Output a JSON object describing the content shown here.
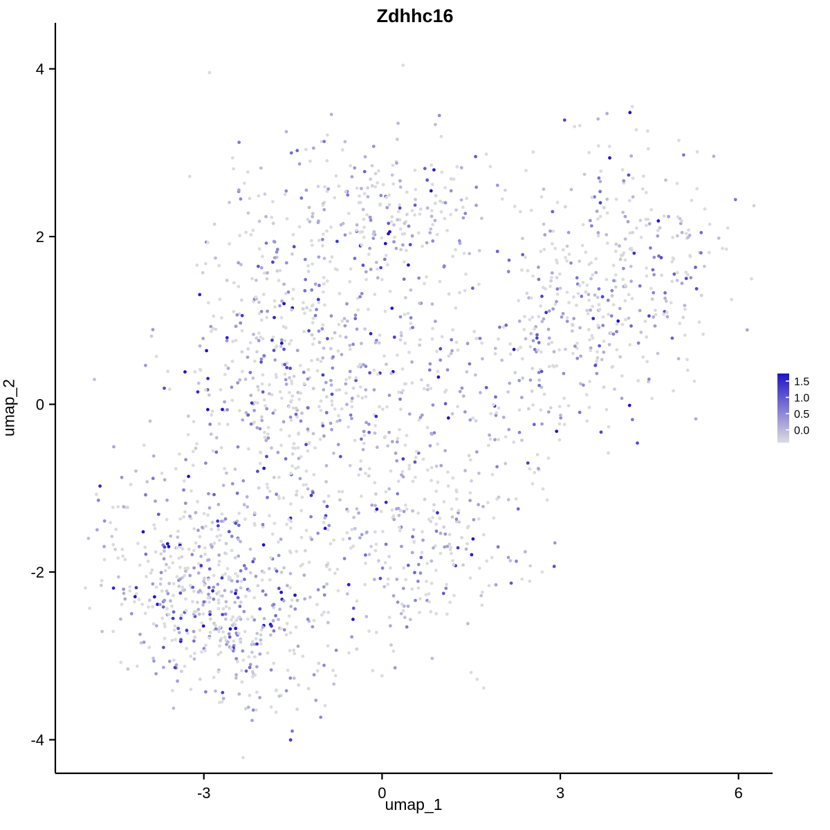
{
  "chart_data": {
    "type": "scatter",
    "title": "Zdhhc16",
    "xlabel": "umap_1",
    "ylabel": "umap_2",
    "xlim": [
      -5.5,
      6.55
    ],
    "ylim": [
      -4.4,
      4.45
    ],
    "x_ticks": [
      -3,
      0,
      3,
      6
    ],
    "y_ticks": [
      -4,
      -2,
      0,
      2,
      4
    ],
    "grid": "off",
    "legend": {
      "position": "right",
      "ticks": [
        1.5,
        1.0,
        0.5,
        0.0
      ],
      "low_color": "#DCDCE0",
      "high_color": "#1F14C8"
    },
    "point_radius": 2.4,
    "seed": 42,
    "value_distribution": {
      "zero_fraction": 0.45,
      "exp_mean": 0.45,
      "max": 1.6
    },
    "clusters": [
      {
        "n": 350,
        "cx": -3.0,
        "cy": -2.2,
        "sx": 0.75,
        "sy": 0.6
      },
      {
        "n": 150,
        "cx": -2.1,
        "cy": -2.8,
        "sx": 0.6,
        "sy": 0.45
      },
      {
        "n": 520,
        "cx": -1.7,
        "cy": 0.2,
        "sx": 1.0,
        "sy": 1.15
      },
      {
        "n": 320,
        "cx": 0.2,
        "cy": 0.3,
        "sx": 1.1,
        "sy": 1.2
      },
      {
        "n": 200,
        "cx": 0.1,
        "cy": 2.4,
        "sx": 1.2,
        "sy": 0.45
      },
      {
        "n": 200,
        "cx": 0.6,
        "cy": -1.8,
        "sx": 0.9,
        "sy": 0.7
      },
      {
        "n": 130,
        "cx": 2.4,
        "cy": 0.3,
        "sx": 0.7,
        "sy": 0.95
      },
      {
        "n": 280,
        "cx": 4.2,
        "cy": 1.7,
        "sx": 0.78,
        "sy": 0.8
      },
      {
        "n": 60,
        "cx": 3.3,
        "cy": 0.9,
        "sx": 0.6,
        "sy": 0.6
      },
      {
        "n": 35,
        "cx": -4.4,
        "cy": -1.6,
        "sx": 0.3,
        "sy": 0.5
      }
    ]
  }
}
